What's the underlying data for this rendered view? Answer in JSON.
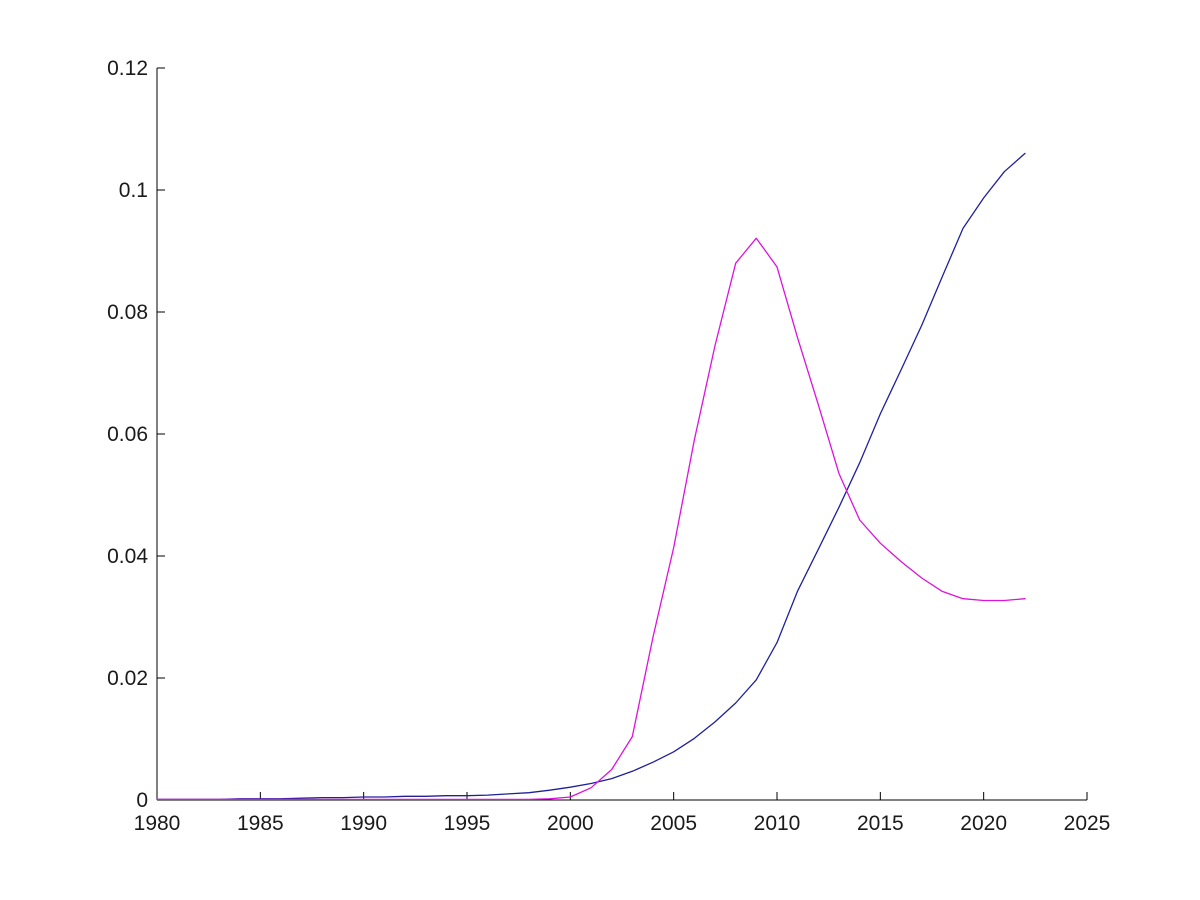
{
  "figure": {
    "background": "#ffffff",
    "title": "",
    "xlabel": "",
    "ylabel": ""
  },
  "chart_data": {
    "type": "line",
    "title": "",
    "xlabel": "",
    "ylabel": "",
    "grid": false,
    "legend": null,
    "xlim": [
      1980,
      2025
    ],
    "ylim": [
      0,
      0.12
    ],
    "xticks": [
      1980,
      1985,
      1990,
      1995,
      2000,
      2005,
      2010,
      2015,
      2020,
      2025
    ],
    "xtick_labels": [
      "1980",
      "1985",
      "1990",
      "1995",
      "2000",
      "2005",
      "2010",
      "2015",
      "2020",
      "2025"
    ],
    "yticks": [
      0,
      0.02,
      0.04,
      0.06,
      0.08,
      0.1,
      0.12
    ],
    "ytick_labels": [
      "0",
      "0.02",
      "0.04",
      "0.06",
      "0.08",
      "0.1",
      "0.12"
    ],
    "axis_color": "#000000",
    "x": [
      1980,
      1981,
      1982,
      1983,
      1984,
      1985,
      1986,
      1987,
      1988,
      1989,
      1990,
      1991,
      1992,
      1993,
      1994,
      1995,
      1996,
      1997,
      1998,
      1999,
      2000,
      2001,
      2002,
      2003,
      2004,
      2005,
      2006,
      2007,
      2008,
      2009,
      2010,
      2011,
      2012,
      2013,
      2014,
      2015,
      2016,
      2017,
      2018,
      2019,
      2020,
      2021,
      2022
    ],
    "series": [
      {
        "name": "rising-blue-curve",
        "color": "#20209A",
        "values": [
          0.0001,
          0.0001,
          0.0001,
          0.0001,
          0.0002,
          0.0002,
          0.0002,
          0.0003,
          0.0004,
          0.0004,
          0.0005,
          0.0005,
          0.0006,
          0.0006,
          0.0007,
          0.0007,
          0.0008,
          0.001,
          0.0012,
          0.0016,
          0.0021,
          0.0027,
          0.0035,
          0.0047,
          0.0062,
          0.0079,
          0.0101,
          0.0128,
          0.0159,
          0.0197,
          0.0258,
          0.0343,
          0.0411,
          0.048,
          0.0553,
          0.0633,
          0.0705,
          0.0778,
          0.0858,
          0.0937,
          0.0987,
          0.103,
          0.106
        ]
      },
      {
        "name": "peaked-magenta-curve",
        "color": "#DD12DD",
        "values": [
          0.0001,
          0.0001,
          0.0001,
          0.0001,
          0.0001,
          0.0001,
          0.0001,
          0.0001,
          0.0001,
          0.0001,
          0.0001,
          0.0001,
          0.0001,
          0.0001,
          0.0001,
          0.0001,
          0.0001,
          0.0001,
          0.0001,
          0.0002,
          0.0005,
          0.002,
          0.005,
          0.0104,
          0.0267,
          0.0414,
          0.059,
          0.0745,
          0.088,
          0.0921,
          0.0874,
          0.0757,
          0.0648,
          0.0535,
          0.0459,
          0.0421,
          0.0391,
          0.0364,
          0.0342,
          0.033,
          0.0327,
          0.0327,
          0.033
        ]
      }
    ]
  }
}
